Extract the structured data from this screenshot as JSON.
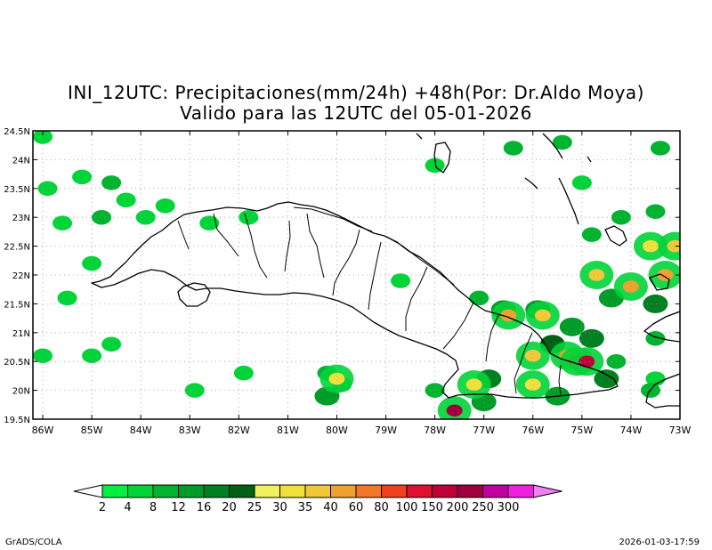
{
  "titles": {
    "line1": "INI_12UTC: Precipitaciones(mm/24h) +48h(Por: Dr.Aldo Moya)",
    "line2": "Valido para las 12UTC del 05-01-2026"
  },
  "map": {
    "lon_range": [
      -86.2,
      -73.0
    ],
    "lat_range": [
      19.5,
      24.5
    ],
    "lon_ticks": [
      {
        "value": -86,
        "label": "86W"
      },
      {
        "value": -85,
        "label": "85W"
      },
      {
        "value": -84,
        "label": "84W"
      },
      {
        "value": -83,
        "label": "83W"
      },
      {
        "value": -82,
        "label": "82W"
      },
      {
        "value": -81,
        "label": "81W"
      },
      {
        "value": -80,
        "label": "80W"
      },
      {
        "value": -79,
        "label": "79W"
      },
      {
        "value": -78,
        "label": "78W"
      },
      {
        "value": -77,
        "label": "77W"
      },
      {
        "value": -76,
        "label": "76W"
      },
      {
        "value": -75,
        "label": "75W"
      },
      {
        "value": -74,
        "label": "74W"
      },
      {
        "value": -73,
        "label": "73W"
      }
    ],
    "lat_ticks": [
      {
        "value": 19.5,
        "label": "19.5N"
      },
      {
        "value": 20,
        "label": "20N"
      },
      {
        "value": 20.5,
        "label": "20.5N"
      },
      {
        "value": 21,
        "label": "21N"
      },
      {
        "value": 21.5,
        "label": "21.5N"
      },
      {
        "value": 22,
        "label": "22N"
      },
      {
        "value": 22.5,
        "label": "22.5N"
      },
      {
        "value": 23,
        "label": "23N"
      },
      {
        "value": 23.5,
        "label": "23.5N"
      },
      {
        "value": 24,
        "label": "24N"
      },
      {
        "value": 24.5,
        "label": "24.5N"
      }
    ],
    "grid": "dotted"
  },
  "legend": {
    "labels": [
      "2",
      "4",
      "8",
      "12",
      "16",
      "20",
      "25",
      "30",
      "35",
      "40",
      "60",
      "80",
      "100",
      "150",
      "200",
      "250",
      "300"
    ],
    "colors": [
      "#00f040",
      "#00d438",
      "#00b430",
      "#009c28",
      "#008020",
      "#006014",
      "#f0f060",
      "#f0e03c",
      "#f0c838",
      "#f0a030",
      "#f07828",
      "#f04020",
      "#e01030",
      "#c00038",
      "#a00040",
      "#c000a0",
      "#f020e0"
    ],
    "under_color": "#ffffff",
    "over_color": "#f080f0"
  },
  "precip_cells": [
    {
      "lon": -86.0,
      "lat": 24.4,
      "value": 4
    },
    {
      "lon": -85.9,
      "lat": 23.5,
      "value": 4
    },
    {
      "lon": -85.6,
      "lat": 22.9,
      "value": 4
    },
    {
      "lon": -85.2,
      "lat": 23.7,
      "value": 4
    },
    {
      "lon": -84.6,
      "lat": 23.6,
      "value": 8
    },
    {
      "lon": -84.3,
      "lat": 23.3,
      "value": 4
    },
    {
      "lon": -83.5,
      "lat": 23.2,
      "value": 4
    },
    {
      "lon": -83.9,
      "lat": 23.0,
      "value": 4
    },
    {
      "lon": -85.0,
      "lat": 22.2,
      "value": 4
    },
    {
      "lon": -85.5,
      "lat": 21.6,
      "value": 4
    },
    {
      "lon": -84.8,
      "lat": 23.0,
      "value": 8
    },
    {
      "lon": -82.6,
      "lat": 22.9,
      "value": 4
    },
    {
      "lon": -81.8,
      "lat": 23.0,
      "value": 4
    },
    {
      "lon": -85.0,
      "lat": 20.6,
      "value": 4
    },
    {
      "lon": -86.0,
      "lat": 20.6,
      "value": 4
    },
    {
      "lon": -84.6,
      "lat": 20.8,
      "value": 4
    },
    {
      "lon": -82.9,
      "lat": 20.0,
      "value": 4
    },
    {
      "lon": -81.9,
      "lat": 20.3,
      "value": 4
    },
    {
      "lon": -80.2,
      "lat": 20.3,
      "value": 8
    },
    {
      "lon": -80.2,
      "lat": 19.9,
      "value": 12
    },
    {
      "lon": -79.9,
      "lat": 20.1,
      "value": 8
    },
    {
      "lon": -80.0,
      "lat": 20.2,
      "value": 30
    },
    {
      "lon": -78.7,
      "lat": 21.9,
      "value": 4
    },
    {
      "lon": -78.0,
      "lat": 23.9,
      "value": 4
    },
    {
      "lon": -77.1,
      "lat": 21.6,
      "value": 8
    },
    {
      "lon": -76.6,
      "lat": 21.4,
      "value": 12
    },
    {
      "lon": -76.5,
      "lat": 21.3,
      "value": 40
    },
    {
      "lon": -75.9,
      "lat": 21.4,
      "value": 12
    },
    {
      "lon": -75.8,
      "lat": 21.3,
      "value": 35
    },
    {
      "lon": -75.6,
      "lat": 20.8,
      "value": 20
    },
    {
      "lon": -75.3,
      "lat": 20.6,
      "value": 40
    },
    {
      "lon": -75.1,
      "lat": 20.5,
      "value": 80
    },
    {
      "lon": -74.9,
      "lat": 20.5,
      "value": 150
    },
    {
      "lon": -76.0,
      "lat": 20.6,
      "value": 35
    },
    {
      "lon": -76.9,
      "lat": 20.2,
      "value": 16
    },
    {
      "lon": -77.2,
      "lat": 20.1,
      "value": 30
    },
    {
      "lon": -76.0,
      "lat": 20.1,
      "value": 30
    },
    {
      "lon": -77.6,
      "lat": 19.65,
      "value": 200
    },
    {
      "lon": -78.0,
      "lat": 20.0,
      "value": 8
    },
    {
      "lon": -77.0,
      "lat": 19.8,
      "value": 12
    },
    {
      "lon": -75.5,
      "lat": 19.9,
      "value": 12
    },
    {
      "lon": -74.5,
      "lat": 20.2,
      "value": 16
    },
    {
      "lon": -74.3,
      "lat": 20.5,
      "value": 8
    },
    {
      "lon": -73.5,
      "lat": 20.9,
      "value": 8
    },
    {
      "lon": -73.6,
      "lat": 20.0,
      "value": 8
    },
    {
      "lon": -74.4,
      "lat": 21.6,
      "value": 12
    },
    {
      "lon": -74.0,
      "lat": 21.8,
      "value": 40
    },
    {
      "lon": -73.5,
      "lat": 21.5,
      "value": 16
    },
    {
      "lon": -73.3,
      "lat": 22.0,
      "value": 40
    },
    {
      "lon": -73.6,
      "lat": 22.5,
      "value": 30
    },
    {
      "lon": -73.1,
      "lat": 22.5,
      "value": 35
    },
    {
      "lon": -74.7,
      "lat": 22.0,
      "value": 35
    },
    {
      "lon": -74.8,
      "lat": 22.7,
      "value": 8
    },
    {
      "lon": -74.2,
      "lat": 23.0,
      "value": 8
    },
    {
      "lon": -73.5,
      "lat": 23.1,
      "value": 8
    },
    {
      "lon": -75.0,
      "lat": 23.6,
      "value": 4
    },
    {
      "lon": -76.4,
      "lat": 24.2,
      "value": 8
    },
    {
      "lon": -75.4,
      "lat": 24.3,
      "value": 8
    },
    {
      "lon": -73.4,
      "lat": 24.2,
      "value": 8
    },
    {
      "lon": -75.2,
      "lat": 21.1,
      "value": 12
    },
    {
      "lon": -74.8,
      "lat": 20.9,
      "value": 16
    },
    {
      "lon": -73.5,
      "lat": 20.2,
      "value": 4
    }
  ]
}
